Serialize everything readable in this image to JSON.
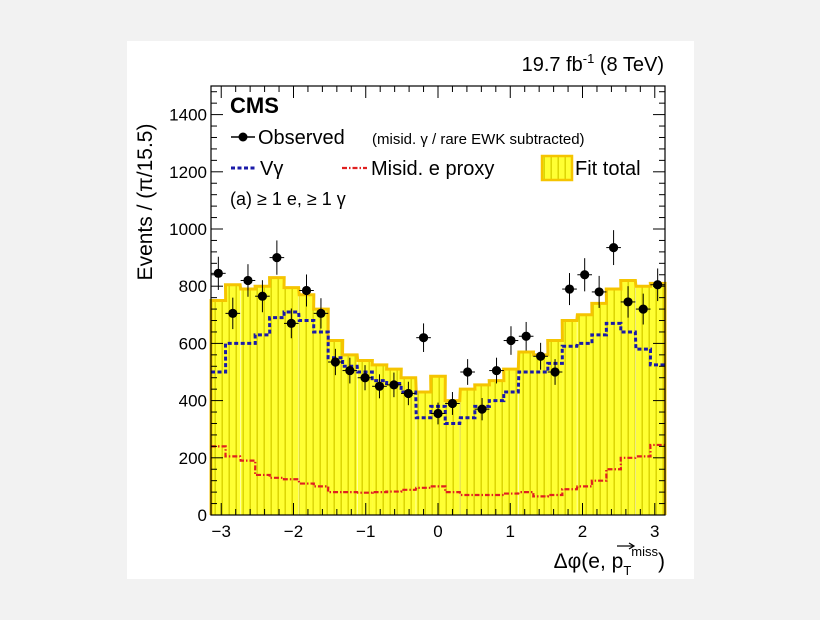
{
  "chart_data": {
    "type": "bar",
    "lumi_main": "19.7 fb",
    "lumi_sup": "-1",
    "lumi_tail": " (8 TeV)",
    "experiment": "CMS",
    "selection": "(a) ≥ 1 e, ≥ 1 γ",
    "xlabel_main": "Δφ(e, p",
    "xlabel_sub": "T",
    "xlabel_sup": "miss",
    "xlabel_close": ")",
    "ylabel": "Events / (π/15.5)",
    "xlim": [
      -3.14159,
      3.14159
    ],
    "ylim": [
      0,
      1500
    ],
    "xticks": [
      -3,
      -2,
      -1,
      0,
      1,
      2,
      3
    ],
    "xtick_labels": [
      "−3",
      "−2",
      "−1",
      "0",
      "1",
      "2",
      "3"
    ],
    "yticks": [
      0,
      200,
      400,
      600,
      800,
      1000,
      1200,
      1400
    ],
    "ytick_labels": [
      "0",
      "200",
      "400",
      "600",
      "800",
      "1000",
      "1200",
      "1400"
    ],
    "bin_width": 0.2027,
    "bin_centers": [
      -3.04,
      -2.84,
      -2.63,
      -2.43,
      -2.23,
      -2.03,
      -1.82,
      -1.62,
      -1.42,
      -1.22,
      -1.01,
      -0.81,
      -0.61,
      -0.41,
      -0.2,
      0.0,
      0.2,
      0.41,
      0.61,
      0.81,
      1.01,
      1.22,
      1.42,
      1.62,
      1.82,
      2.03,
      2.23,
      2.43,
      2.63,
      2.84,
      3.04
    ],
    "legend": {
      "observed": "Observed",
      "observed_note": "(misid. γ / rare EWK subtracted)",
      "vgamma": "Vγ",
      "misid": "Misid. e proxy",
      "fit_total": "Fit total"
    },
    "series": [
      {
        "name": "Fit total",
        "style": "filled-step",
        "values": [
          750,
          805,
          790,
          800,
          830,
          795,
          770,
          720,
          610,
          560,
          540,
          525,
          510,
          480,
          430,
          485,
          400,
          440,
          455,
          470,
          510,
          570,
          560,
          610,
          680,
          700,
          740,
          790,
          820,
          800,
          810
        ]
      },
      {
        "name": "Vγ",
        "style": "dashed-step",
        "values": [
          500,
          600,
          600,
          630,
          690,
          710,
          680,
          640,
          550,
          520,
          500,
          470,
          460,
          430,
          340,
          380,
          320,
          340,
          380,
          400,
          430,
          500,
          500,
          530,
          590,
          600,
          630,
          670,
          640,
          580,
          525
        ]
      },
      {
        "name": "Misid. e proxy",
        "style": "dashdot-step",
        "values": [
          240,
          205,
          190,
          140,
          130,
          125,
          110,
          100,
          80,
          80,
          78,
          80,
          82,
          88,
          95,
          100,
          80,
          70,
          70,
          70,
          75,
          80,
          65,
          70,
          90,
          100,
          120,
          160,
          200,
          205,
          245
        ]
      },
      {
        "name": "Observed",
        "style": "points",
        "values": [
          845,
          705,
          820,
          765,
          900,
          670,
          785,
          705,
          535,
          505,
          480,
          450,
          455,
          425,
          620,
          355,
          390,
          500,
          370,
          505,
          610,
          625,
          555,
          500,
          790,
          840,
          780,
          935,
          745,
          720,
          805
        ],
        "errors": [
          58,
          55,
          57,
          56,
          60,
          52,
          56,
          53,
          46,
          45,
          44,
          42,
          43,
          41,
          50,
          38,
          40,
          45,
          39,
          45,
          50,
          50,
          47,
          45,
          56,
          58,
          56,
          61,
          55,
          54,
          57
        ]
      }
    ]
  },
  "colors": {
    "fit_fill": "#ffff33",
    "fit_stripe": "#d8d200",
    "fit_edge": "#f5c400",
    "vgamma": "#1a1aa8",
    "misid": "#e02020",
    "points": "#000000",
    "panel_bg": "#ffffff",
    "page_bg": "#f2f2f2"
  }
}
